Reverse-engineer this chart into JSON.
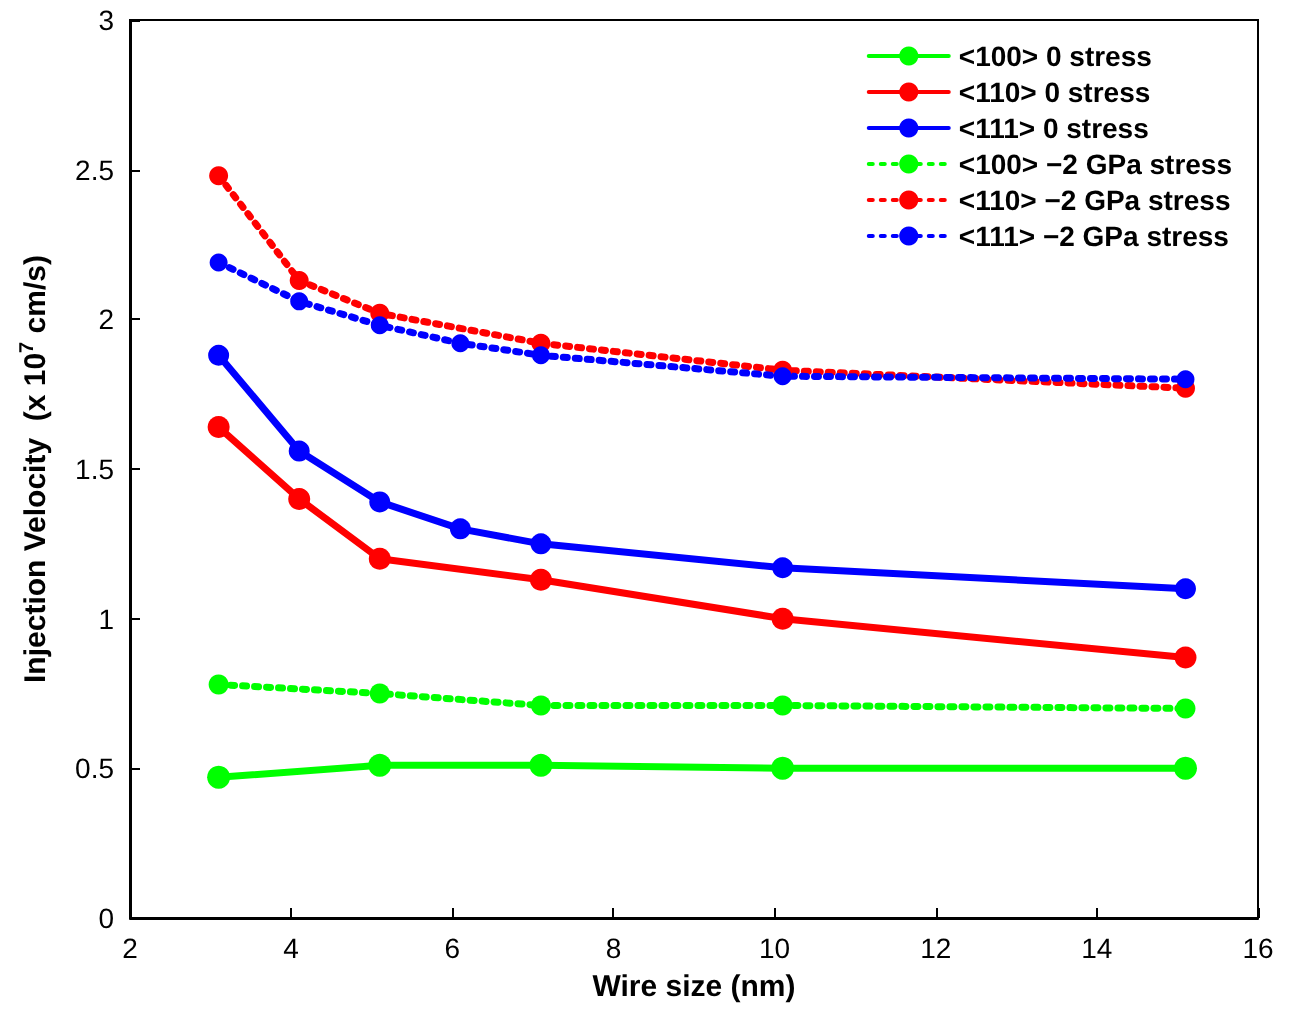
{
  "chart_data": {
    "type": "line",
    "xlabel": "Wire size (nm)",
    "ylabel": "Injection Velocity  (x 10$^{7}$ cm/s)",
    "xlim": [
      2,
      16
    ],
    "xticks": [
      2,
      4,
      6,
      8,
      10,
      12,
      14,
      16
    ],
    "ylim": [
      0,
      3
    ],
    "yticks": [
      0,
      0.5,
      1,
      1.5,
      2,
      2.5,
      3
    ],
    "legend": "top right",
    "marker": "circle",
    "grid": false,
    "series": [
      {
        "name": "<100> 0 stress",
        "color": "#00ff00",
        "line_style": "solid",
        "x": [
          3.1,
          5.1,
          7.1,
          10.1,
          15.1
        ],
        "values": [
          0.47,
          0.51,
          0.51,
          0.5,
          0.5
        ]
      },
      {
        "name": "<110> 0 stress",
        "color": "#ff0000",
        "line_style": "solid",
        "x": [
          3.1,
          4.1,
          5.1,
          7.1,
          10.1,
          15.1
        ],
        "values": [
          1.64,
          1.4,
          1.2,
          1.13,
          1.0,
          0.87
        ]
      },
      {
        "name": "<111> 0 stress",
        "color": "#0000ff",
        "line_style": "solid",
        "x": [
          3.1,
          4.1,
          5.1,
          6.1,
          7.1,
          10.1,
          15.1
        ],
        "values": [
          1.88,
          1.56,
          1.39,
          1.3,
          1.25,
          1.17,
          1.1
        ]
      },
      {
        "name": "<100> −2 GPa stress",
        "color": "#00ff00",
        "line_style": "dotted",
        "x": [
          3.1,
          5.1,
          7.1,
          10.1,
          15.1
        ],
        "values": [
          0.78,
          0.75,
          0.71,
          0.71,
          0.7
        ]
      },
      {
        "name": "<110> −2 GPa stress",
        "color": "#ff0000",
        "line_style": "dotted",
        "x": [
          3.1,
          4.1,
          5.1,
          7.1,
          10.1,
          15.1
        ],
        "values": [
          2.48,
          2.13,
          2.02,
          1.92,
          1.83,
          1.77
        ]
      },
      {
        "name": "<111> −2 GPa stress",
        "color": "#0000ff",
        "line_style": "dotted",
        "x": [
          3.1,
          4.1,
          5.1,
          6.1,
          7.1,
          10.1,
          15.1
        ],
        "values": [
          2.19,
          2.06,
          1.98,
          1.92,
          1.88,
          1.81,
          1.8
        ]
      }
    ]
  }
}
